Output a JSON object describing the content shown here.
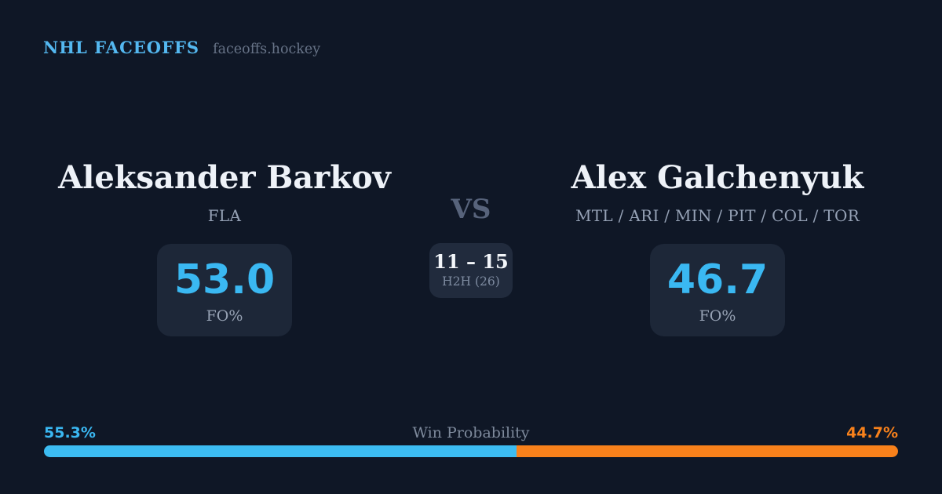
{
  "header": {
    "brand": "NHL FACEOFFS",
    "domain": "faceoffs.hockey"
  },
  "matchup": {
    "vs_label": "VS",
    "h2h": {
      "score": "11 – 15",
      "label": "H2H (26)"
    },
    "players": [
      {
        "name": "Aleksander Barkov",
        "teams": "FLA",
        "fo_pct": "53.0",
        "stat_label": "FO%"
      },
      {
        "name": "Alex Galchenyuk",
        "teams": "MTL / ARI / MIN / PIT / COL / TOR",
        "fo_pct": "46.7",
        "stat_label": "FO%"
      }
    ]
  },
  "win_probability": {
    "label": "Win Probability",
    "left_pct_label": "55.3%",
    "right_pct_label": "44.7%",
    "left_value": 55.3,
    "right_value": 44.7
  },
  "colors": {
    "background": "#0f1726",
    "card": "#1d2738",
    "accent_blue": "#3ab8f2",
    "accent_orange": "#f8811b",
    "text_primary": "#eef2f8",
    "text_muted": "#95a1b5"
  }
}
